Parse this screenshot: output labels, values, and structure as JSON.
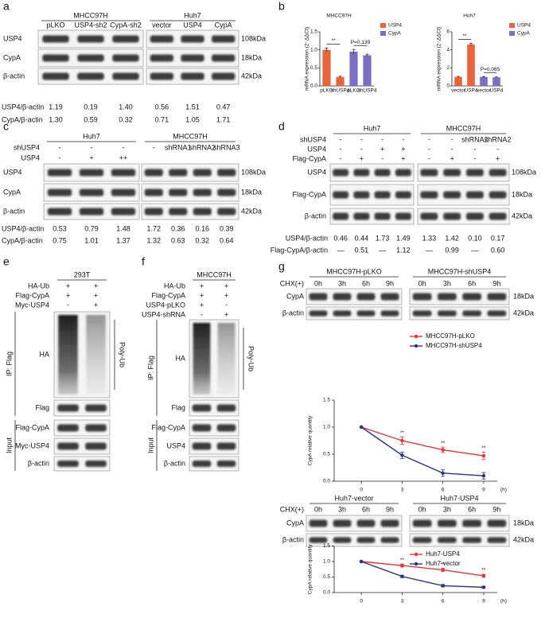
{
  "panels": {
    "a": {
      "label": "a",
      "groups": [
        {
          "title": "MHCC97H",
          "lanes": [
            "pLKO",
            "USP4-sh2",
            "CypA-sh2"
          ]
        },
        {
          "title": "Huh7",
          "lanes": [
            "vector",
            "USP4",
            "CypA"
          ]
        }
      ],
      "rows": [
        "USP4",
        "CypA",
        "β-actin"
      ],
      "sizes": [
        "108kDa",
        "18kDa",
        "42kDa"
      ],
      "quant": [
        {
          "label": "USP4/β-actin",
          "values": [
            "1.19",
            "0.19",
            "1.40",
            "0.56",
            "1.51",
            "0.47"
          ]
        },
        {
          "label": "CypA/β-actin",
          "values": [
            "1.30",
            "0.59",
            "0.32",
            "0.71",
            "1.05",
            "1.71"
          ]
        }
      ]
    },
    "b": {
      "label": "b",
      "charts": [
        {
          "type": "bar",
          "title": "MHCC97H",
          "y_label": "mRNA expression (2⁻ΔΔCt)",
          "categories": [
            "pLKO",
            "shUSP4"
          ],
          "series": [
            {
              "name": "USP4",
              "color": "#e8643c",
              "values": [
                1.0,
                0.25
              ],
              "errors": [
                0.05,
                0.02
              ]
            },
            {
              "name": "CypA",
              "color": "#7b6fc4",
              "values": [
                0.95,
                0.85
              ],
              "errors": [
                0.06,
                0.03
              ]
            }
          ],
          "annotations": [
            "**",
            "P=0.139"
          ],
          "ylim": [
            0,
            1.5
          ],
          "yticks": [
            {
              "value": 0,
              "label": "0.0"
            },
            0.5,
            {
              "value": 1,
              "label": "1.0"
            },
            1.5
          ]
        },
        {
          "type": "bar",
          "title": "Huh7",
          "y_label": "mRNA expression (2⁻ΔΔCt)",
          "categories": [
            "vector",
            "USP4"
          ],
          "series": [
            {
              "name": "USP4",
              "color": "#e8643c",
              "values": [
                1.0,
                4.6
              ],
              "errors": [
                0.05,
                0.12
              ]
            },
            {
              "name": "CypA",
              "color": "#7b6fc4",
              "values": [
                1.0,
                0.95
              ],
              "errors": [
                0.04,
                0.04
              ]
            }
          ],
          "annotations": [
            "**",
            "P=0.065"
          ],
          "ylim": [
            0,
            6
          ],
          "yticks": [
            0,
            2,
            4,
            6
          ]
        }
      ]
    },
    "c": {
      "label": "c",
      "groups": [
        {
          "title": "Huh7"
        },
        {
          "title": "MHCC97H"
        }
      ],
      "conditions": [
        {
          "name": "shUSP4",
          "values": [
            "-",
            "-",
            "-",
            "-",
            "shRNA1",
            "shRNA2",
            "shRNA3"
          ]
        },
        {
          "name": "USP4",
          "values": [
            "-",
            "+",
            "++",
            null,
            null,
            null,
            null
          ]
        }
      ],
      "rows": [
        "USP4",
        "CypA",
        "β-actin"
      ],
      "sizes": [
        "108kDa",
        "18kDa",
        "42kDa"
      ],
      "quant": [
        {
          "label": "USP4/β-actin",
          "values": [
            "0.53",
            "0.79",
            "1.48",
            "1.72",
            "0.36",
            "0.16",
            "0.39"
          ]
        },
        {
          "label": "CypA/β-actin",
          "values": [
            "0.75",
            "1.01",
            "1.37",
            "1.32",
            "0.63",
            "0.32",
            "0.64"
          ]
        }
      ]
    },
    "d": {
      "label": "d",
      "groups": [
        {
          "title": "Huh7"
        },
        {
          "title": "MHCC97H"
        }
      ],
      "conditions": [
        {
          "name": "shUSP4",
          "values": [
            "-",
            "-",
            "-",
            "-",
            "-",
            "-",
            "shRNA2",
            "shRNA2"
          ]
        },
        {
          "name": "USP4",
          "values": [
            "-",
            "-",
            "+",
            "+",
            "-",
            "-",
            "-",
            "-"
          ]
        },
        {
          "name": "Flag-CypA",
          "values": [
            "-",
            "+",
            "-",
            "+",
            "-",
            "+",
            "-",
            "+"
          ]
        }
      ],
      "rows": [
        "USP4",
        "Flag-CypA",
        "β-actin"
      ],
      "sizes": [
        "108kDa",
        "18kDa",
        "42kDa"
      ],
      "quant": [
        {
          "label": "USP4/β-actin",
          "values": [
            "0.46",
            "0.44",
            "1.73",
            "1.49",
            "1.33",
            "1.42",
            "0.10",
            "0.17"
          ]
        },
        {
          "label": "Flag-CypA/β-actin",
          "values": [
            "—",
            "0.51",
            "—",
            "1.12",
            "—",
            "0.99",
            "—",
            "0.60"
          ]
        }
      ]
    },
    "e": {
      "label": "e",
      "groups": [
        {
          "title": "293T"
        }
      ],
      "conditions": [
        {
          "name": "HA-Ub",
          "values": [
            "+",
            "+"
          ]
        },
        {
          "name": "Flag-CypA",
          "values": [
            "+",
            "+"
          ]
        },
        {
          "name": "Myc-USP4",
          "values": [
            "-",
            "+"
          ]
        }
      ],
      "ip_label": "IP: Flag",
      "input_label": "Input",
      "smear_label": "Poly-Ub",
      "rows": [
        "HA",
        "Flag",
        "Flag-CypA",
        "Myc-USP4",
        "β-actin"
      ]
    },
    "f": {
      "label": "f",
      "groups": [
        {
          "title": "MHCC97H"
        }
      ],
      "conditions": [
        {
          "name": "HA-Ub",
          "values": [
            "+",
            "+"
          ]
        },
        {
          "name": "Flag-CypA",
          "values": [
            "+",
            "+"
          ]
        },
        {
          "name": "USP4-pLKO",
          "values": [
            "+",
            "-"
          ]
        },
        {
          "name": "USP4-shRNA",
          "values": [
            "-",
            "+"
          ]
        }
      ],
      "ip_label": "IP: Flag",
      "input_label": "Input",
      "smear_label": "Poly-Ub",
      "rows": [
        "HA",
        "Flag",
        "Flag-CypA",
        "USP4",
        "β-actin"
      ]
    },
    "g": {
      "label": "g",
      "blots": [
        {
          "condition_label": "CHX(+)",
          "groups": [
            {
              "title": "MHCC97H-pLKO",
              "lanes": [
                "0h",
                "3h",
                "6h",
                "9h"
              ]
            },
            {
              "title": "MHCC97H-shUSP4",
              "lanes": [
                "0h",
                "3h",
                "6h",
                "9h"
              ]
            }
          ],
          "rows": [
            "CypA",
            "β-actin"
          ],
          "sizes": [
            "18kDa",
            "42kDa"
          ]
        },
        {
          "condition_label": "CHX(+)",
          "groups": [
            {
              "title": "Huh7-vector",
              "lanes": [
                "0h",
                "3h",
                "6h",
                "9h"
              ]
            },
            {
              "title": "Huh7-USP4",
              "lanes": [
                "0h",
                "3h",
                "6h",
                "9h"
              ]
            }
          ],
          "rows": [
            "CypA",
            "β-actin"
          ],
          "sizes": [
            "18kDa",
            "42kDa"
          ]
        }
      ],
      "charts": [
        {
          "type": "line",
          "y_label": "CypA relative quantity",
          "x_unit": "(h)",
          "x": [
            0,
            3,
            6,
            9
          ],
          "xlim": [
            -2,
            10
          ],
          "xticks": [
            0,
            3,
            6,
            9
          ],
          "ylim": [
            0,
            1.5
          ],
          "yticks": [
            {
              "value": 0,
              "label": "0.0"
            },
            0.5,
            {
              "value": 1,
              "label": "1.0"
            },
            1.5
          ],
          "series": [
            {
              "name": "MHCC97H-pLKO",
              "color": "#e8323c",
              "values": [
                1.0,
                0.75,
                0.58,
                0.47
              ],
              "errors": [
                0,
                0.07,
                0.05,
                0.07
              ]
            },
            {
              "name": "MHCC97H-shUSP4",
              "color": "#2a3580",
              "values": [
                1.0,
                0.48,
                0.15,
                0.1
              ],
              "errors": [
                0,
                0.06,
                0.06,
                0.06
              ]
            }
          ],
          "annotations": [
            null,
            "**",
            "**",
            "**"
          ]
        },
        {
          "type": "line",
          "y_label": "CypA relative quantity",
          "x_unit": "(h)",
          "x": [
            0,
            3,
            6,
            9
          ],
          "xlim": [
            -2,
            10
          ],
          "xticks": [
            0,
            3,
            6,
            9
          ],
          "ylim": [
            0,
            1.5
          ],
          "yticks": [
            {
              "value": 0,
              "label": "0.0"
            },
            0.5,
            {
              "value": 1,
              "label": "1.0"
            },
            1.5
          ],
          "series": [
            {
              "name": "Huh7-USP4",
              "color": "#e8323c",
              "values": [
                1.0,
                0.87,
                0.73,
                0.54
              ],
              "errors": [
                0,
                0.05,
                0.05,
                0.05
              ]
            },
            {
              "name": "Huh7-vector",
              "color": "#2a3580",
              "values": [
                1.0,
                0.52,
                0.22,
                0.17
              ],
              "errors": [
                0,
                0.04,
                0.04,
                0.03
              ]
            }
          ],
          "annotations": [
            null,
            "**",
            "**",
            "**"
          ]
        }
      ]
    }
  }
}
